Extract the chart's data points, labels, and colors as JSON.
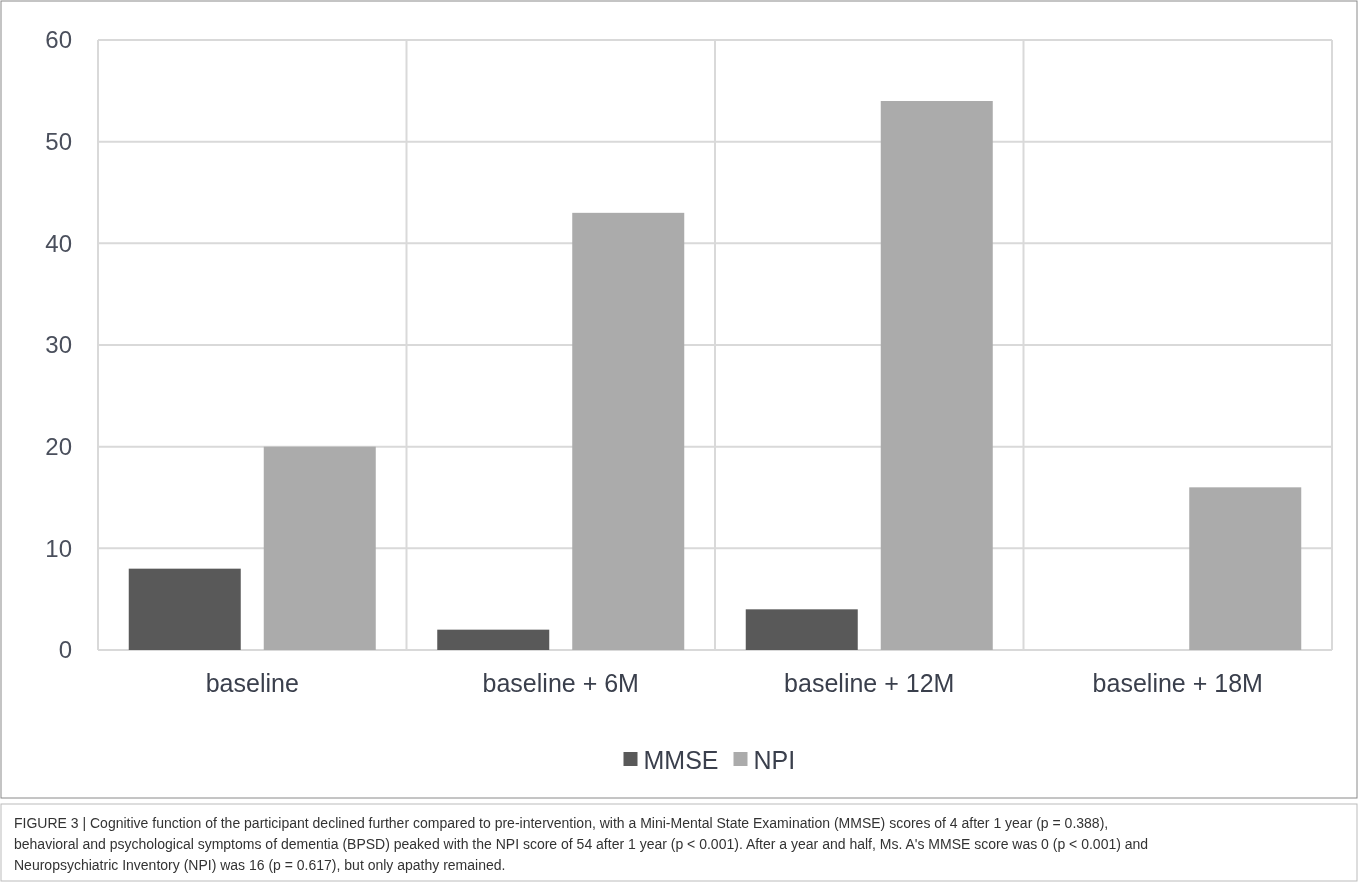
{
  "chart_data": {
    "type": "bar",
    "categories": [
      "baseline",
      "baseline + 6M",
      "baseline + 12M",
      "baseline + 18M"
    ],
    "series": [
      {
        "name": "MMSE",
        "color": "#595959",
        "values": [
          8,
          2,
          4,
          0
        ]
      },
      {
        "name": "NPI",
        "color": "#ababab",
        "values": [
          20,
          43,
          54,
          16
        ]
      }
    ],
    "ylim": [
      0,
      60
    ],
    "yticks": [
      0,
      10,
      20,
      30,
      40,
      50,
      60
    ],
    "grid": true,
    "legend": "bottom",
    "annotations": [
      "FIGURE 3 | Cognitive function of the participant declined further compared to pre-intervention, with a Mini-Mental State Examination (MMSE) scores of 4 after 1 year (p = 0.388), behavioral and psychological symptoms of dementia (BPSD) peaked with the NPI score of 54 after 1 year (p < 0.001). After a year and half, Ms. A's MMSE score was 0 (p < 0.001) and Neuropsychiatric Inventory (NPI) was 16 (p = 0.617), but only apathy remained."
    ]
  }
}
